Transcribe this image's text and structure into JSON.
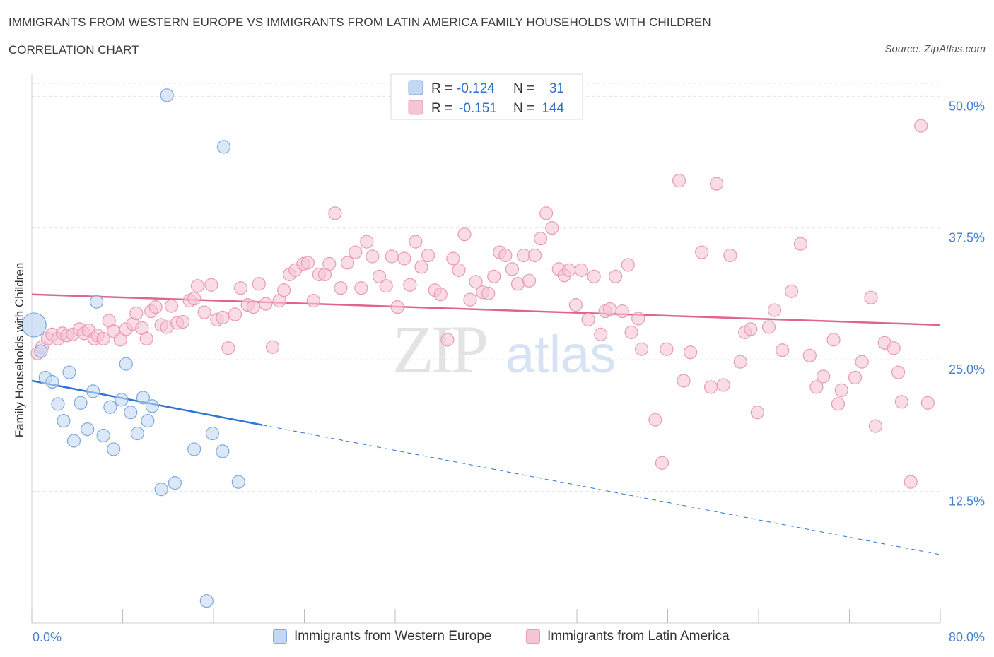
{
  "header": {
    "title": "IMMIGRANTS FROM WESTERN EUROPE VS IMMIGRANTS FROM LATIN AMERICA FAMILY HOUSEHOLDS WITH CHILDREN",
    "subtitle": "CORRELATION CHART",
    "source": "Source: ZipAtlas.com"
  },
  "watermark": {
    "zip": "ZIP",
    "atlas": "atlas"
  },
  "colors": {
    "blue_fill": "#c4d8f4",
    "blue_stroke": "#7ea9e0",
    "blue_line": "#2f74d0",
    "pink_fill": "#f6c5d5",
    "pink_stroke": "#e99ab4",
    "pink_line": "#e0648c",
    "axis_text": "#4a7fd0"
  },
  "stats_legend": {
    "rows": [
      {
        "r_label": "R =",
        "r_value": "-0.124",
        "n_label": "N =",
        "n_value": "31"
      },
      {
        "r_label": "R =",
        "r_value": "-0.151",
        "n_label": "N =",
        "n_value": "144"
      }
    ]
  },
  "bottom_legend": {
    "series_a": "Immigrants from Western Europe",
    "series_b": "Immigrants from Latin America"
  },
  "chart_data": {
    "type": "scatter",
    "xlabel": "",
    "ylabel": "Family Households with Children",
    "xlim": [
      0,
      80
    ],
    "ylim": [
      0,
      52.1
    ],
    "x_tick_labels": [
      "0.0%",
      "80.0%"
    ],
    "y_ticks": [
      12.5,
      25.0,
      37.5,
      50.0
    ],
    "y_tick_labels": [
      "12.5%",
      "25.0%",
      "37.5%",
      "50.0%"
    ],
    "grid": true,
    "legend_position": "top-center",
    "series": [
      {
        "name": "Immigrants from Western Europe",
        "color": "#c4d8f4",
        "trend": {
          "x0": 0,
          "y0": 23.0,
          "x1": 20.3,
          "y1": 18.8,
          "dash_to_x": 80,
          "dash_to_y": 6.5
        },
        "points": [
          [
            0.2,
            28.3
          ],
          [
            0.8,
            25.8
          ],
          [
            1.2,
            23.3
          ],
          [
            1.8,
            22.9
          ],
          [
            2.3,
            20.8
          ],
          [
            2.8,
            19.2
          ],
          [
            3.3,
            23.8
          ],
          [
            3.7,
            17.3
          ],
          [
            4.3,
            20.9
          ],
          [
            4.9,
            18.4
          ],
          [
            5.4,
            22.0
          ],
          [
            5.7,
            30.5
          ],
          [
            6.3,
            17.8
          ],
          [
            6.9,
            20.5
          ],
          [
            7.2,
            16.5
          ],
          [
            7.9,
            21.2
          ],
          [
            8.3,
            24.6
          ],
          [
            8.7,
            20.0
          ],
          [
            9.3,
            18.0
          ],
          [
            9.8,
            21.4
          ],
          [
            10.2,
            19.2
          ],
          [
            10.6,
            20.6
          ],
          [
            11.4,
            12.7
          ],
          [
            11.9,
            50.1
          ],
          [
            12.6,
            13.3
          ],
          [
            14.3,
            16.5
          ],
          [
            15.4,
            2.1
          ],
          [
            15.9,
            18.0
          ],
          [
            16.8,
            16.3
          ],
          [
            16.9,
            45.2
          ],
          [
            18.2,
            13.4
          ]
        ]
      },
      {
        "name": "Immigrants from Latin America",
        "color": "#f6c5d5",
        "trend": {
          "x0": 0,
          "y0": 31.2,
          "x1": 80,
          "y1": 28.3
        },
        "points": [
          [
            0.5,
            25.6
          ],
          [
            0.9,
            26.2
          ],
          [
            1.4,
            27.0
          ],
          [
            1.8,
            27.4
          ],
          [
            2.3,
            27.0
          ],
          [
            2.7,
            27.5
          ],
          [
            3.1,
            27.3
          ],
          [
            3.6,
            27.4
          ],
          [
            4.2,
            27.9
          ],
          [
            4.6,
            27.5
          ],
          [
            5.0,
            27.8
          ],
          [
            5.5,
            27.0
          ],
          [
            5.8,
            27.3
          ],
          [
            6.3,
            27.0
          ],
          [
            6.8,
            28.7
          ],
          [
            7.2,
            27.7
          ],
          [
            7.8,
            26.9
          ],
          [
            8.3,
            27.9
          ],
          [
            8.9,
            28.4
          ],
          [
            9.2,
            29.4
          ],
          [
            9.7,
            28.0
          ],
          [
            10.1,
            27.0
          ],
          [
            10.5,
            29.6
          ],
          [
            10.9,
            30.0
          ],
          [
            11.4,
            28.3
          ],
          [
            11.9,
            28.1
          ],
          [
            12.3,
            30.1
          ],
          [
            12.8,
            28.5
          ],
          [
            13.3,
            28.6
          ],
          [
            13.9,
            30.6
          ],
          [
            14.3,
            30.8
          ],
          [
            14.6,
            32.0
          ],
          [
            15.2,
            29.5
          ],
          [
            15.8,
            32.1
          ],
          [
            16.3,
            28.8
          ],
          [
            16.8,
            29.0
          ],
          [
            17.3,
            26.1
          ],
          [
            17.9,
            29.3
          ],
          [
            18.4,
            31.8
          ],
          [
            19.0,
            30.2
          ],
          [
            19.5,
            30.0
          ],
          [
            20.0,
            32.2
          ],
          [
            20.6,
            30.3
          ],
          [
            21.2,
            26.2
          ],
          [
            21.8,
            30.6
          ],
          [
            22.2,
            31.6
          ],
          [
            22.7,
            33.1
          ],
          [
            23.2,
            33.5
          ],
          [
            23.9,
            34.1
          ],
          [
            24.3,
            34.2
          ],
          [
            24.8,
            30.6
          ],
          [
            25.3,
            33.1
          ],
          [
            25.8,
            33.1
          ],
          [
            26.2,
            34.1
          ],
          [
            26.7,
            38.9
          ],
          [
            27.2,
            31.8
          ],
          [
            27.8,
            34.2
          ],
          [
            28.5,
            35.2
          ],
          [
            29.0,
            31.8
          ],
          [
            29.5,
            36.2
          ],
          [
            30.0,
            34.8
          ],
          [
            30.6,
            32.9
          ],
          [
            31.2,
            32.0
          ],
          [
            31.7,
            34.8
          ],
          [
            32.2,
            30.0
          ],
          [
            32.8,
            34.6
          ],
          [
            33.3,
            32.1
          ],
          [
            33.8,
            36.2
          ],
          [
            34.3,
            33.8
          ],
          [
            34.9,
            34.9
          ],
          [
            35.5,
            31.6
          ],
          [
            36.0,
            31.2
          ],
          [
            36.6,
            26.9
          ],
          [
            37.1,
            34.6
          ],
          [
            37.6,
            33.5
          ],
          [
            38.1,
            36.9
          ],
          [
            38.6,
            30.7
          ],
          [
            39.1,
            32.4
          ],
          [
            39.7,
            31.4
          ],
          [
            40.2,
            31.3
          ],
          [
            40.7,
            32.9
          ],
          [
            41.2,
            35.2
          ],
          [
            41.7,
            34.9
          ],
          [
            42.3,
            33.6
          ],
          [
            42.8,
            32.2
          ],
          [
            43.3,
            34.9
          ],
          [
            43.8,
            32.5
          ],
          [
            44.3,
            34.9
          ],
          [
            44.8,
            36.5
          ],
          [
            45.3,
            38.9
          ],
          [
            45.8,
            37.5
          ],
          [
            46.4,
            33.6
          ],
          [
            46.9,
            33.0
          ],
          [
            47.3,
            33.5
          ],
          [
            47.9,
            30.2
          ],
          [
            48.4,
            33.5
          ],
          [
            49.0,
            28.8
          ],
          [
            49.5,
            32.9
          ],
          [
            50.1,
            27.4
          ],
          [
            50.5,
            29.6
          ],
          [
            50.9,
            29.8
          ],
          [
            51.4,
            32.9
          ],
          [
            52.0,
            29.6
          ],
          [
            52.5,
            34.0
          ],
          [
            52.8,
            27.6
          ],
          [
            53.4,
            28.9
          ],
          [
            53.7,
            26.0
          ],
          [
            54.9,
            19.3
          ],
          [
            55.5,
            15.2
          ],
          [
            55.9,
            26.0
          ],
          [
            57.0,
            42.0
          ],
          [
            57.4,
            23.0
          ],
          [
            58.0,
            25.7
          ],
          [
            59.0,
            35.2
          ],
          [
            59.8,
            22.4
          ],
          [
            60.3,
            41.7
          ],
          [
            60.9,
            22.6
          ],
          [
            61.5,
            34.9
          ],
          [
            62.4,
            24.8
          ],
          [
            62.8,
            27.6
          ],
          [
            63.3,
            27.9
          ],
          [
            63.9,
            20.0
          ],
          [
            64.9,
            28.1
          ],
          [
            65.4,
            29.7
          ],
          [
            66.1,
            25.9
          ],
          [
            66.9,
            31.5
          ],
          [
            67.7,
            36.0
          ],
          [
            68.5,
            25.4
          ],
          [
            69.1,
            22.4
          ],
          [
            69.7,
            23.4
          ],
          [
            70.6,
            26.9
          ],
          [
            71.0,
            20.8
          ],
          [
            71.3,
            22.1
          ],
          [
            72.5,
            23.3
          ],
          [
            73.1,
            24.8
          ],
          [
            73.9,
            30.9
          ],
          [
            74.3,
            18.7
          ],
          [
            75.1,
            26.6
          ],
          [
            75.9,
            26.1
          ],
          [
            76.3,
            23.8
          ],
          [
            76.6,
            21.0
          ],
          [
            77.4,
            13.4
          ],
          [
            78.3,
            47.2
          ],
          [
            78.9,
            20.9
          ]
        ]
      }
    ]
  }
}
